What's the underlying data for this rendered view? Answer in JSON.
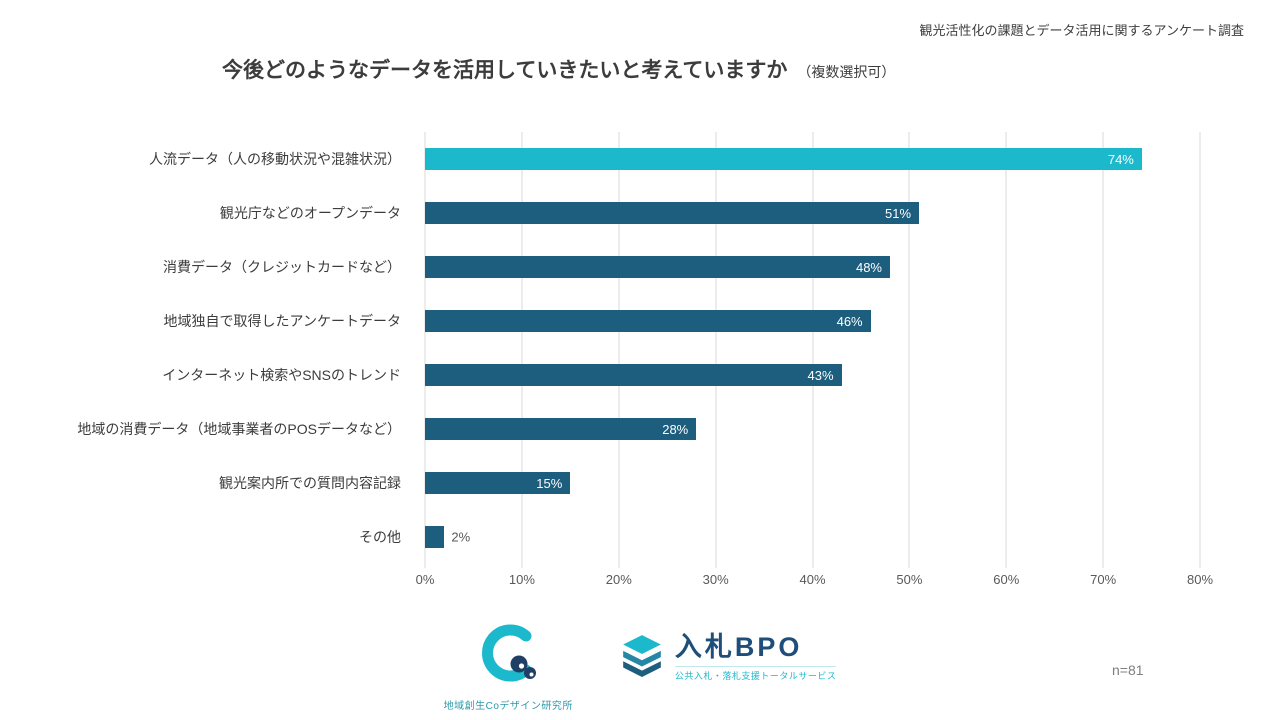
{
  "header": {
    "note": "観光活性化の課題とデータ活用に関するアンケート調査"
  },
  "title": {
    "main": "今後どのようなデータを活用していきたいと考えていますか",
    "suffix": "（複数選択可）"
  },
  "chart_data": {
    "type": "bar",
    "orientation": "horizontal",
    "title": "今後どのようなデータを活用していきたいと考えていますか（複数選択可）",
    "categories": [
      "人流データ（人の移動状況や混雑状況）",
      "観光庁などのオープンデータ",
      "消費データ（クレジットカードなど）",
      "地域独自で取得したアンケートデータ",
      "インターネット検索やSNSのトレンド",
      "地域の消費データ（地域事業者のPOSデータなど）",
      "観光案内所での質問内容記録",
      "その他"
    ],
    "values": [
      74,
      51,
      48,
      46,
      43,
      28,
      15,
      2
    ],
    "value_suffix": "%",
    "xlim": [
      0,
      80
    ],
    "xticks": [
      "0%",
      "10%",
      "20%",
      "30%",
      "40%",
      "50%",
      "60%",
      "70%",
      "80%"
    ],
    "grid": true,
    "highlight_index": 0,
    "highlight_color": "#1cb8cc",
    "bar_color": "#1d5d7d",
    "sample_size": "n=81"
  },
  "footer": {
    "logo1_caption": "地域創生Coデザイン研究所",
    "logo2_name": "入札BPO",
    "logo2_subtitle": "公共入札・落札支援トータルサービス",
    "sample": "n=81"
  }
}
